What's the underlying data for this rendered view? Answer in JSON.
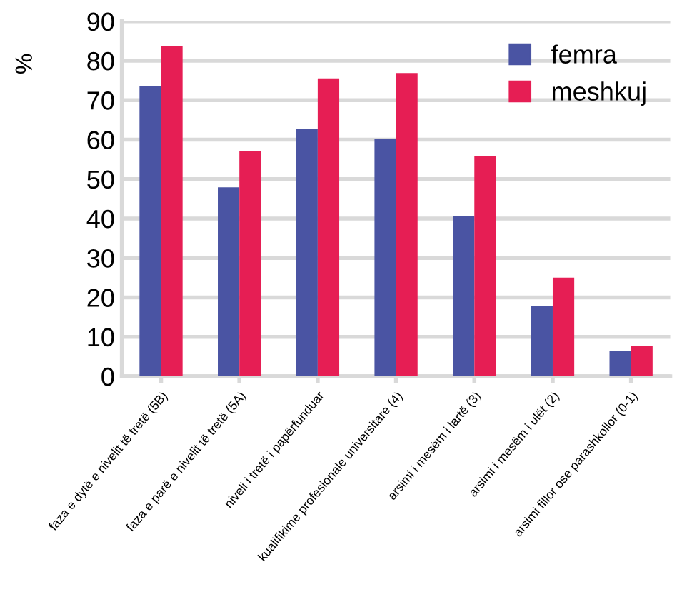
{
  "chart_data": {
    "type": "bar",
    "ylabel": "%",
    "categories": [
      "faza e dytë e nivelit të tretë (5B)",
      "faza e parë e nivelit të tretë (5A)",
      "niveli i tretë i papërfunduar",
      "kualifikime profesionale universitare (4)",
      "arsimi i mesëm i lartë (3)",
      "arsimi i mesëm i ulët (2)",
      "arsimi fillor ose parashkollor (0-1)"
    ],
    "series": [
      {
        "name": "femra",
        "color": "#4a54a3",
        "values": [
          73.6,
          47.9,
          62.8,
          60.2,
          40.6,
          17.8,
          6.5
        ]
      },
      {
        "name": "meshkuj",
        "color": "#e61e54",
        "values": [
          83.8,
          57.0,
          75.5,
          76.9,
          55.9,
          25.0,
          7.6
        ]
      }
    ],
    "ylim": [
      0,
      90
    ],
    "yticks": [
      0,
      10,
      20,
      30,
      40,
      50,
      60,
      70,
      80,
      90
    ],
    "grid": "y",
    "legend": "top right"
  }
}
